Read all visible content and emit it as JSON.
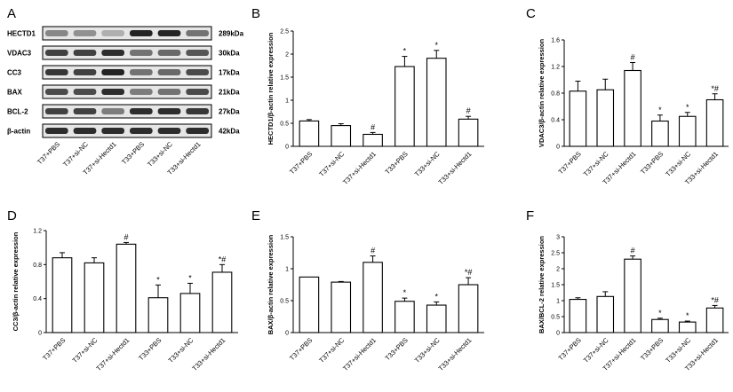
{
  "figure": {
    "blot": {
      "letter": "A",
      "rows": [
        {
          "protein": "HECTD1",
          "size": "289kDa"
        },
        {
          "protein": "VDAC3",
          "size": "30kDa"
        },
        {
          "protein": "CC3",
          "size": "17kDa"
        },
        {
          "protein": "BAX",
          "size": "21kDa"
        },
        {
          "protein": "BCL-2",
          "size": "27kDa"
        },
        {
          "protein": "β-actin",
          "size": "42kDa"
        }
      ],
      "lanes": [
        "T37+PBS",
        "T37+si-NC",
        "T37+si-Hectd1",
        "T33+PBS",
        "T33+si-NC",
        "T33+si-Hectd1"
      ],
      "band_intensity": [
        [
          0.45,
          0.4,
          0.25,
          0.95,
          0.95,
          0.55
        ],
        [
          0.8,
          0.8,
          0.9,
          0.55,
          0.6,
          0.7
        ],
        [
          0.85,
          0.8,
          0.95,
          0.55,
          0.6,
          0.75
        ],
        [
          0.75,
          0.75,
          0.9,
          0.5,
          0.55,
          0.75
        ],
        [
          0.8,
          0.8,
          0.5,
          0.9,
          0.9,
          0.85
        ],
        [
          0.9,
          0.9,
          0.9,
          0.9,
          0.9,
          0.9
        ]
      ]
    }
  },
  "chart_data": [
    {
      "panel": "B",
      "type": "bar",
      "categories": [
        "T37+PBS",
        "T37+si-NC",
        "T37+si-Hectd1",
        "T33+PBS",
        "T33+si-NC",
        "T33+si-Hectd1"
      ],
      "values": [
        0.55,
        0.45,
        0.26,
        1.73,
        1.91,
        0.59
      ],
      "errors": [
        0.03,
        0.04,
        0.04,
        0.22,
        0.17,
        0.06
      ],
      "marks": [
        "",
        "",
        "#",
        "*",
        "*",
        "#"
      ],
      "ylabel": "HECTD1/β-actin relative expression",
      "ylim": [
        0,
        2.5
      ],
      "ticks": [
        0,
        0.5,
        1,
        1.5,
        2,
        2.5
      ],
      "tick_labels": [
        "0",
        "0.5",
        "1",
        "1.5",
        "2",
        "2.5"
      ]
    },
    {
      "panel": "C",
      "type": "bar",
      "categories": [
        "T37+PBS",
        "T37+si-NC",
        "T37+si-Hectd1",
        "T33+PBS",
        "T33+si-NC",
        "T33+si-Hectd1"
      ],
      "values": [
        0.83,
        0.85,
        1.14,
        0.38,
        0.45,
        0.7
      ],
      "errors": [
        0.15,
        0.16,
        0.12,
        0.09,
        0.06,
        0.09
      ],
      "marks": [
        "",
        "",
        "#",
        "*",
        "*",
        "*#"
      ],
      "ylabel": "VDAC3/β-actin relative expression",
      "ylim": [
        0,
        1.6
      ],
      "ticks": [
        0,
        0.4,
        0.8,
        1.2,
        1.6
      ],
      "tick_labels": [
        "0",
        "0.4",
        "0.8",
        "1.2",
        "1.6"
      ]
    },
    {
      "panel": "D",
      "type": "bar",
      "categories": [
        "T37+PBS",
        "T37+si-NC",
        "T37+si-Hectd1",
        "T33+PBS",
        "T33+si-NC",
        "T33+si-Hectd1"
      ],
      "values": [
        0.88,
        0.82,
        1.04,
        0.41,
        0.46,
        0.71
      ],
      "errors": [
        0.06,
        0.06,
        0.02,
        0.15,
        0.12,
        0.09
      ],
      "marks": [
        "",
        "",
        "#",
        "*",
        "*",
        "*#"
      ],
      "ylabel": "CC3/β-actin relative expression",
      "ylim": [
        0,
        1.2
      ],
      "ticks": [
        0,
        0.4,
        0.8,
        1.2
      ],
      "tick_labels": [
        "0",
        "0.4",
        "0.8",
        "1.2"
      ]
    },
    {
      "panel": "E",
      "type": "bar",
      "categories": [
        "T37+PBS",
        "T37+si-NC",
        "T37+si-Hectd1",
        "T33+PBS",
        "T33+si-NC",
        "T33+si-Hectd1"
      ],
      "values": [
        0.87,
        0.79,
        1.1,
        0.49,
        0.43,
        0.75
      ],
      "errors": [
        0.0,
        0.01,
        0.1,
        0.05,
        0.05,
        0.11
      ],
      "marks": [
        "",
        "",
        "#",
        "*",
        "*",
        "*#"
      ],
      "ylabel": "BAX/β-actin relative expression",
      "ylim": [
        0,
        1.5
      ],
      "ticks": [
        0,
        0.5,
        1,
        1.5
      ],
      "tick_labels": [
        "0",
        "0.5",
        "1",
        "1.5"
      ]
    },
    {
      "panel": "F",
      "type": "bar",
      "categories": [
        "T37+PBS",
        "T37+si-NC",
        "T37+si-Hectd1",
        "T33+PBS",
        "T33+si-NC",
        "T33+si-Hectd1"
      ],
      "values": [
        1.04,
        1.13,
        2.3,
        0.41,
        0.33,
        0.77
      ],
      "errors": [
        0.05,
        0.15,
        0.1,
        0.04,
        0.03,
        0.08
      ],
      "marks": [
        "",
        "",
        "#",
        "*",
        "*",
        "*#"
      ],
      "ylabel": "BAX/BCL-2 relative expression",
      "ylim": [
        0,
        3
      ],
      "ticks": [
        0,
        0.5,
        1,
        1.5,
        2,
        2.5,
        3
      ],
      "tick_labels": [
        "0",
        "0.5",
        "1",
        "1.5",
        "2",
        "2.5",
        "3"
      ]
    }
  ]
}
